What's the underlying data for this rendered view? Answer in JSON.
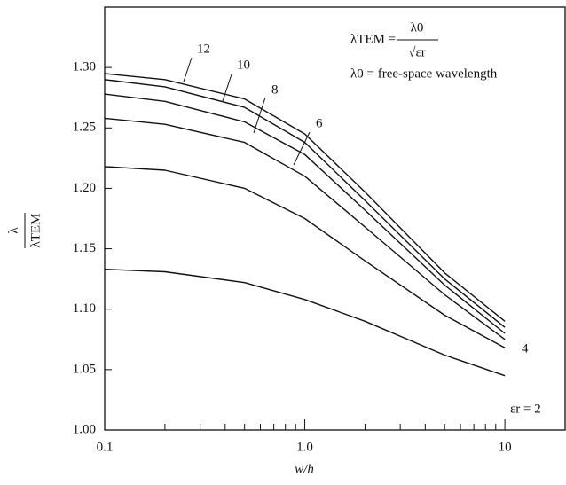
{
  "chart_data": {
    "type": "line",
    "xlabel": "w/h",
    "ylabel": [
      "λ",
      "λTEM"
    ],
    "annotations": [
      "λTEM =",
      "λ0",
      "√εr",
      "λ0 = free-space wavelength"
    ],
    "log_x": true,
    "x": [
      0.1,
      0.2,
      0.5,
      1,
      2,
      5,
      10
    ],
    "series": [
      {
        "name": "12",
        "color": "#111111",
        "values": [
          1.295,
          1.29,
          1.274,
          1.245,
          1.197,
          1.13,
          1.09
        ]
      },
      {
        "name": "10",
        "color": "#111111",
        "values": [
          1.29,
          1.284,
          1.267,
          1.238,
          1.19,
          1.125,
          1.085
        ]
      },
      {
        "name": "8",
        "color": "#111111",
        "values": [
          1.278,
          1.272,
          1.255,
          1.228,
          1.182,
          1.12,
          1.08
        ]
      },
      {
        "name": "6",
        "color": "#111111",
        "values": [
          1.258,
          1.253,
          1.238,
          1.21,
          1.168,
          1.112,
          1.075
        ]
      },
      {
        "name": "4",
        "color": "#111111",
        "values": [
          1.218,
          1.215,
          1.2,
          1.175,
          1.14,
          1.095,
          1.068
        ]
      },
      {
        "name": "εr = 2",
        "color": "#111111",
        "values": [
          1.133,
          1.131,
          1.122,
          1.108,
          1.09,
          1.062,
          1.045
        ]
      }
    ],
    "xlim": [
      0.1,
      20
    ],
    "ylim": [
      1.0,
      1.35
    ],
    "xticks": [
      0.1,
      {
        "value": 1,
        "label": "1.0"
      },
      10
    ],
    "xminor_ticks": [
      0.2,
      0.3,
      0.4,
      0.5,
      0.6,
      0.7,
      0.8,
      0.9,
      2,
      3,
      4,
      5,
      6,
      7,
      8,
      9,
      20
    ],
    "yticks": [
      {
        "value": 1.0,
        "label": "1.00"
      },
      {
        "value": 1.05,
        "label": "1.05"
      },
      {
        "value": 1.1,
        "label": "1.10"
      },
      {
        "value": 1.15,
        "label": "1.15"
      },
      {
        "value": 1.2,
        "label": "1.20"
      },
      {
        "value": 1.25,
        "label": "1.25"
      },
      {
        "value": 1.3,
        "label": "1.30"
      }
    ]
  }
}
